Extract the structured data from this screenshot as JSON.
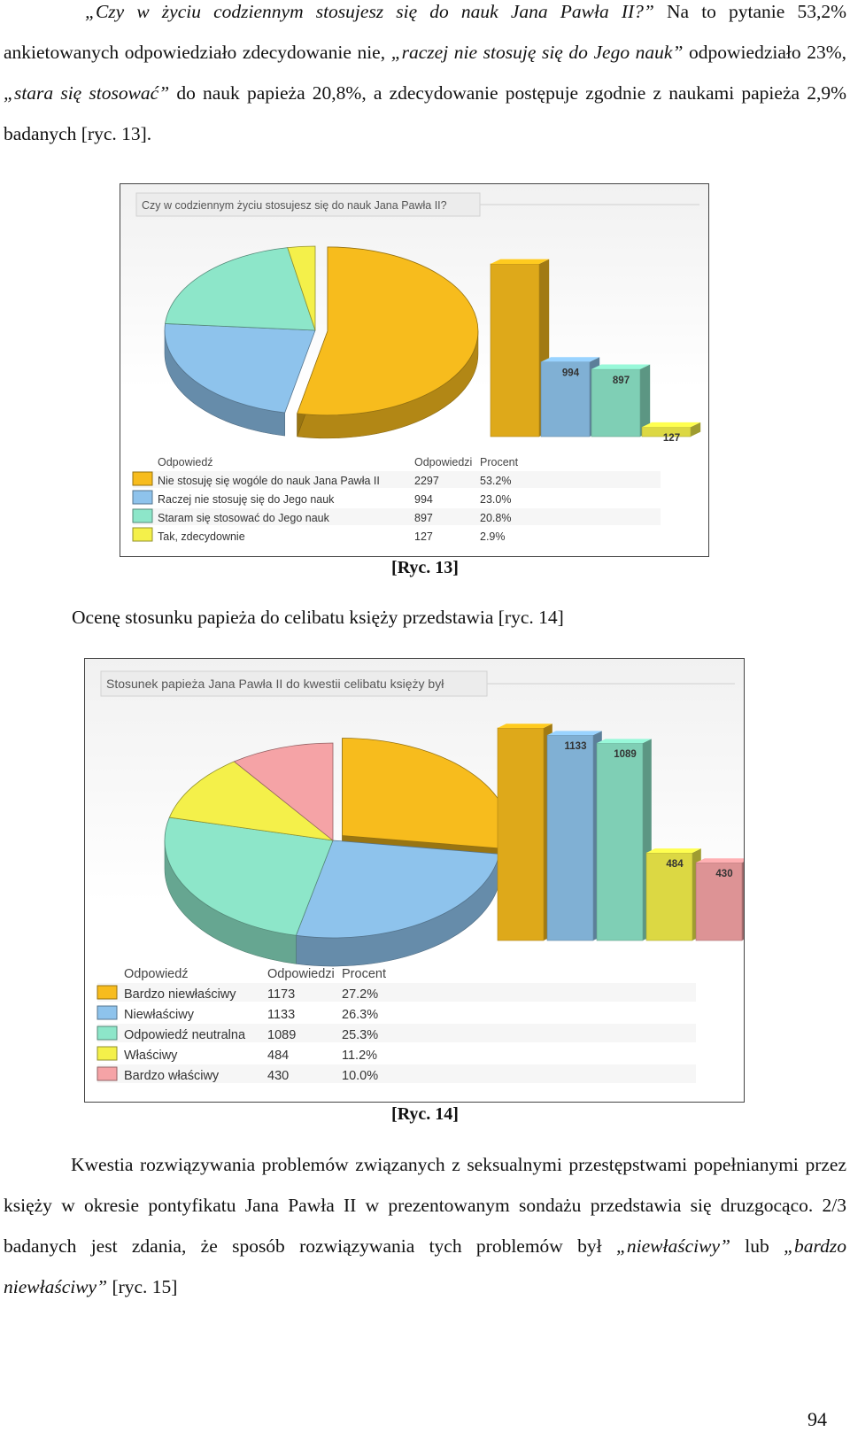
{
  "intro": {
    "q": "„Czy w życiu codziennym stosujesz się do nauk Jana Pawła II?”",
    "t1": " Na to pytanie 53,2% ankietowanych odpowiedziało zdecydowanie nie, ",
    "q2": "„raczej nie stosuję się do Jego nauk”",
    "t2": " odpowiedziało 23%, ",
    "q3": "„stara się stosować”",
    "t3": " do nauk papieża 20,8%, a zdecydowanie postępuje zgodnie z naukami papieża 2,9% badanych [ryc. 13]."
  },
  "middle_text": "Ocenę stosunku papieża do celibatu księży przedstawia [ryc. 14]",
  "outro": {
    "t1": "Kwestia rozwiązywania problemów związanych z seksualnymi przestępstwami popełnianymi przez księży w okresie pontyfikatu Jana Pawła II w prezentowanym sondażu przedstawia się druzgocąco. 2/3 badanych jest zdania, że sposób rozwiązywania tych problemów był ",
    "q1": "„niewłaściwy”",
    "t2": " lub ",
    "q2": "„bardzo niewłaściwy”",
    "t3": " [ryc. 15]"
  },
  "page_number": "94",
  "colors": {
    "orange": "#F7BC1D",
    "blue": "#8EC3EC",
    "green": "#8DE6C9",
    "yellow": "#F4F04A",
    "pink": "#F5A3A6"
  },
  "chart_data": [
    {
      "type": "pie",
      "title": "Czy w codziennym życiu stosujesz się do nauk Jana Pawła II?",
      "caption": "[Ryc. 13]",
      "legend_headers": [
        "Odpowiedź",
        "Odpowiedzi",
        "Procent"
      ],
      "categories": [
        "Nie stosuję się wogóle do nauk Jana Pawła II",
        "Raczej nie stosuję się do Jego nauk",
        "Staram się stosować do Jego nauk",
        "Tak, zdecydownie"
      ],
      "values": [
        2297,
        994,
        897,
        127
      ],
      "percents": [
        "53.2%",
        "23.0%",
        "20.8%",
        "2.9%"
      ],
      "bar_labels": [
        "",
        "994",
        "897",
        "127"
      ],
      "colors": [
        "#F7BC1D",
        "#8EC3EC",
        "#8DE6C9",
        "#F4F04A"
      ]
    },
    {
      "type": "pie",
      "title": "Stosunek papieża Jana Pawła II do kwestii celibatu księży był",
      "caption": "[Ryc. 14]",
      "legend_headers": [
        "Odpowiedź",
        "Odpowiedzi",
        "Procent"
      ],
      "categories": [
        "Bardzo niewłaściwy",
        "Niewłaściwy",
        "Odpowiedź neutralna",
        "Właściwy",
        "Bardzo właściwy"
      ],
      "values": [
        1173,
        1133,
        1089,
        484,
        430
      ],
      "percents": [
        "27.2%",
        "26.3%",
        "25.3%",
        "11.2%",
        "10.0%"
      ],
      "bar_labels": [
        "",
        "1133",
        "1089",
        "484",
        "430"
      ],
      "colors": [
        "#F7BC1D",
        "#8EC3EC",
        "#8DE6C9",
        "#F4F04A",
        "#F5A3A6"
      ]
    }
  ]
}
